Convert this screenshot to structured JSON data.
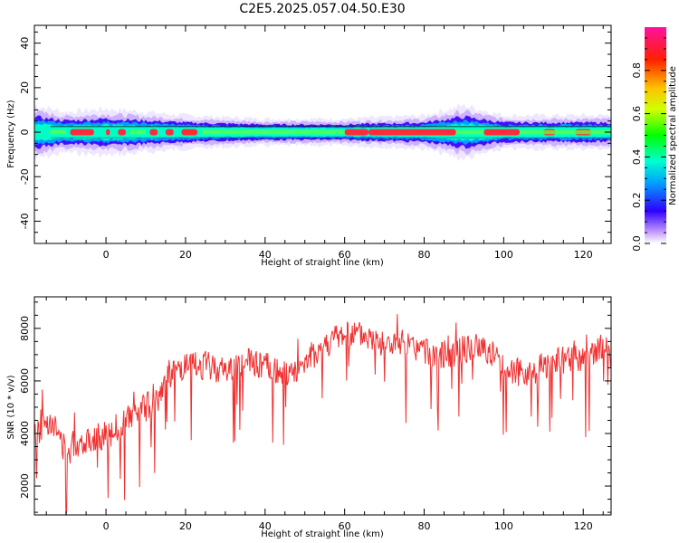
{
  "title": "C2E5.2025.057.04.50.E30",
  "colors": {
    "band_core": "#ff2a3a",
    "band_mid": "#00d0ff",
    "band_edge": "#0000ff",
    "band_halo": "#d8c8ff",
    "snr_line": "#f03030"
  },
  "chart_data": [
    {
      "type": "heatmap",
      "xlabel": "Height of straight line (km)",
      "ylabel": "Frequency (Hz)",
      "xlim": [
        -18,
        127
      ],
      "ylim": [
        -50,
        48
      ],
      "xticks": [
        "0",
        "20",
        "40",
        "60",
        "80",
        "100",
        "120"
      ],
      "yticks": [
        "40",
        "20",
        "0",
        "-20",
        "-40"
      ],
      "xtick_values": [
        0,
        20,
        40,
        60,
        80,
        100,
        120
      ],
      "ytick_values": [
        40,
        20,
        0,
        -20,
        -40
      ],
      "band_center_hz": 0,
      "band_halfwidth_hz": [
        [
          -18,
          4
        ],
        [
          -10,
          3
        ],
        [
          0,
          3.5
        ],
        [
          10,
          3
        ],
        [
          20,
          2.5
        ],
        [
          40,
          2
        ],
        [
          60,
          2
        ],
        [
          80,
          2.5
        ],
        [
          90,
          4
        ],
        [
          100,
          2.5
        ],
        [
          127,
          2.5
        ]
      ],
      "colorbar": {
        "label": "Normalized spectral amplitude",
        "ticks": [
          "0.0",
          "0.2",
          "0.4",
          "0.6",
          "0.8"
        ],
        "tick_values": [
          0.0,
          0.2,
          0.4,
          0.6,
          0.8
        ],
        "range": [
          0,
          1
        ]
      }
    },
    {
      "type": "line",
      "xlabel": "Height of straight line (km)",
      "ylabel": "SNR (10 * v/v)",
      "xlim": [
        -18,
        127
      ],
      "ylim": [
        900,
        9200
      ],
      "xticks": [
        "0",
        "20",
        "40",
        "60",
        "80",
        "100",
        "120"
      ],
      "yticks": [
        "8000",
        "6000",
        "4000",
        "2000"
      ],
      "xtick_values": [
        0,
        20,
        40,
        60,
        80,
        100,
        120
      ],
      "ytick_values": [
        8000,
        6000,
        4000,
        2000
      ],
      "series": [
        {
          "trend": [
            [
              -18,
              3900
            ],
            [
              -14,
              4600
            ],
            [
              -10,
              3300
            ],
            [
              -5,
              3800
            ],
            [
              0,
              3900
            ],
            [
              5,
              4500
            ],
            [
              10,
              5000
            ],
            [
              13,
              5300
            ],
            [
              15,
              6200
            ],
            [
              20,
              6500
            ],
            [
              25,
              6600
            ],
            [
              30,
              6400
            ],
            [
              35,
              6700
            ],
            [
              40,
              6600
            ],
            [
              45,
              6200
            ],
            [
              50,
              6700
            ],
            [
              55,
              7400
            ],
            [
              60,
              7800
            ],
            [
              65,
              7700
            ],
            [
              70,
              7400
            ],
            [
              75,
              7300
            ],
            [
              80,
              7100
            ],
            [
              85,
              7000
            ],
            [
              90,
              7200
            ],
            [
              95,
              7300
            ],
            [
              100,
              6600
            ],
            [
              105,
              6200
            ],
            [
              110,
              6600
            ],
            [
              115,
              6800
            ],
            [
              120,
              6800
            ],
            [
              125,
              7300
            ],
            [
              127,
              6900
            ]
          ]
        }
      ]
    }
  ]
}
